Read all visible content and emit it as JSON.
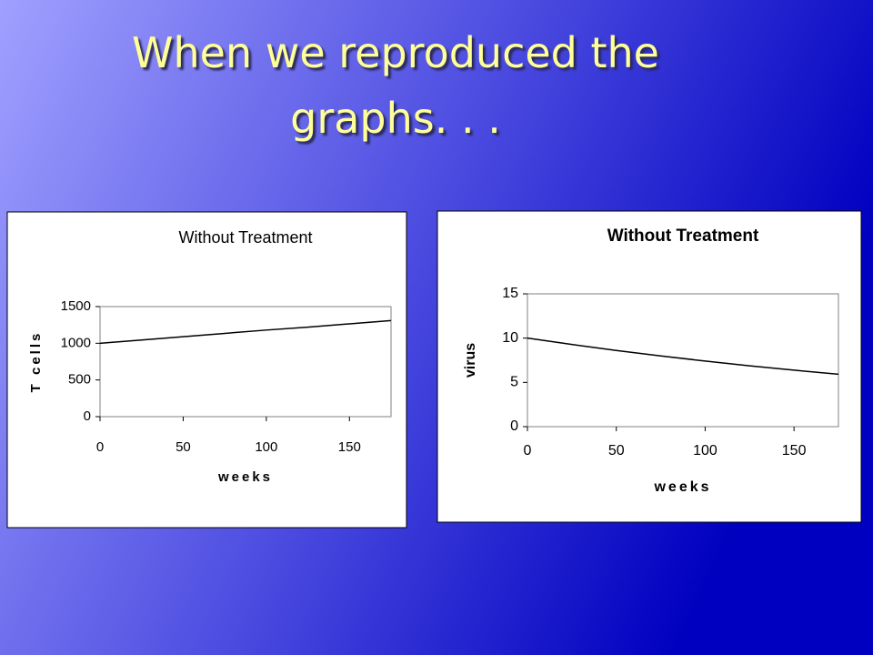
{
  "slide_title": "When we reproduced the graphs. . .",
  "chart_data": [
    {
      "type": "line",
      "title": "Without Treatment",
      "x_label": "weeks",
      "y_label": "T cells",
      "x": [
        0,
        25,
        50,
        75,
        100,
        125,
        150,
        175
      ],
      "values": [
        1000,
        1045,
        1090,
        1135,
        1180,
        1220,
        1265,
        1310
      ],
      "color": "#000000",
      "xlim": [
        0,
        175
      ],
      "xticks": [
        0,
        50,
        100,
        150
      ],
      "ylim": [
        0,
        1500
      ],
      "yticks": [
        0,
        500,
        1000,
        1500
      ]
    },
    {
      "type": "line",
      "title": "Without Treatment",
      "x_label": "weeks",
      "y_label": "virus",
      "x": [
        0,
        25,
        50,
        75,
        100,
        125,
        150,
        175
      ],
      "values": [
        10,
        9.28,
        8.61,
        7.99,
        7.41,
        6.87,
        6.38,
        5.92
      ],
      "color": "#000000",
      "xlim": [
        0,
        175
      ],
      "xticks": [
        0,
        50,
        100,
        150
      ],
      "ylim": [
        0,
        15
      ],
      "yticks": [
        0,
        5,
        10,
        15
      ]
    }
  ]
}
